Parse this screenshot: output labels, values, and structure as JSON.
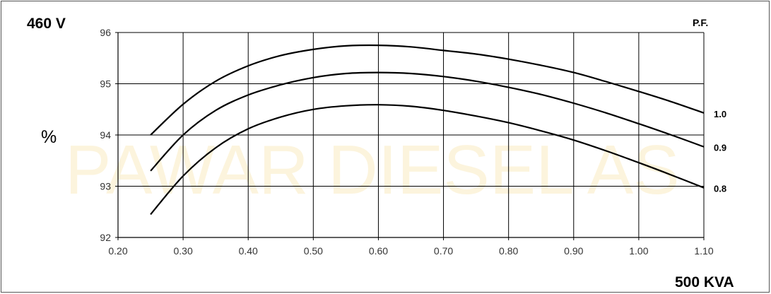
{
  "watermark": {
    "text": "PAWAR DIESEL AS",
    "color": "#f3c64a"
  },
  "labels": {
    "voltage": "460 V",
    "y_unit": "%",
    "pf_header": "P.F.",
    "rating": "500 KVA"
  },
  "chart_data": {
    "type": "line",
    "title": "",
    "xlabel": "",
    "ylabel": "%",
    "xlim": [
      0.2,
      1.1
    ],
    "ylim": [
      92,
      96
    ],
    "x_ticks": [
      "0.20",
      "0.30",
      "0.40",
      "0.50",
      "0.60",
      "0.70",
      "0.80",
      "0.90",
      "1.00",
      "1.10"
    ],
    "y_ticks": [
      "92",
      "93",
      "94",
      "95",
      "96"
    ],
    "grid": true,
    "line_color": "#000000",
    "grid_color": "#000000",
    "series": [
      {
        "name": "1.0",
        "x": [
          0.25,
          0.3,
          0.35,
          0.4,
          0.45,
          0.5,
          0.55,
          0.6,
          0.65,
          0.7,
          0.75,
          0.8,
          0.85,
          0.9,
          0.95,
          1.0,
          1.05,
          1.1
        ],
        "y": [
          94.0,
          94.6,
          95.05,
          95.35,
          95.55,
          95.67,
          95.74,
          95.75,
          95.72,
          95.65,
          95.58,
          95.48,
          95.36,
          95.22,
          95.04,
          94.85,
          94.65,
          94.43
        ]
      },
      {
        "name": "0.9",
        "x": [
          0.25,
          0.3,
          0.35,
          0.4,
          0.45,
          0.5,
          0.55,
          0.6,
          0.65,
          0.7,
          0.75,
          0.8,
          0.85,
          0.9,
          0.95,
          1.0,
          1.05,
          1.1
        ],
        "y": [
          93.3,
          94.0,
          94.48,
          94.78,
          94.98,
          95.12,
          95.2,
          95.22,
          95.2,
          95.14,
          95.05,
          94.93,
          94.79,
          94.62,
          94.43,
          94.22,
          94.0,
          93.77
        ]
      },
      {
        "name": "0.8",
        "x": [
          0.25,
          0.3,
          0.35,
          0.4,
          0.45,
          0.5,
          0.55,
          0.6,
          0.65,
          0.7,
          0.75,
          0.8,
          0.85,
          0.9,
          0.95,
          1.0,
          1.05,
          1.1
        ],
        "y": [
          92.45,
          93.2,
          93.75,
          94.12,
          94.35,
          94.5,
          94.57,
          94.59,
          94.56,
          94.48,
          94.37,
          94.24,
          94.08,
          93.9,
          93.69,
          93.46,
          93.22,
          92.97
        ]
      }
    ]
  }
}
